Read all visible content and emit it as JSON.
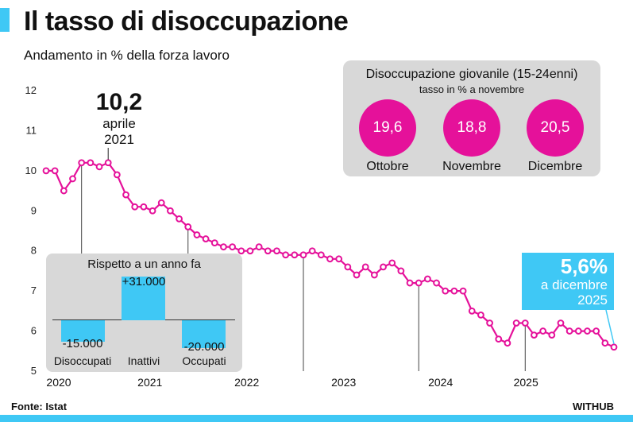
{
  "header": {
    "title": "Il tasso di disoccupazione",
    "subtitle": "Andamento in % della forza lavoro"
  },
  "footer": {
    "source": "Fonte: Istat",
    "brand": "WITHUB"
  },
  "colors": {
    "accent": "#3fc8f5",
    "line": "#e5119a",
    "panel": "#d8d8d8"
  },
  "chart_data": {
    "type": "line",
    "title": "Il tasso di disoccupazione",
    "subtitle": "Andamento in % della forza lavoro",
    "ylabel": "%",
    "xlabel": "",
    "ylim": [
      5,
      12
    ],
    "yticks": [
      "5",
      "6",
      "7",
      "8",
      "9",
      "10",
      "11",
      "12"
    ],
    "xlim": [
      2020.0,
      2025.92
    ],
    "xticks": [
      {
        "label": "2020",
        "value": 2020.0
      },
      {
        "label": "2021",
        "value": 2020.95
      },
      {
        "label": "2022",
        "value": 2021.96
      },
      {
        "label": "2023",
        "value": 2022.97
      },
      {
        "label": "2024",
        "value": 2023.98
      },
      {
        "label": "2025",
        "value": 2024.87
      }
    ],
    "series": [
      {
        "name": "Tasso di disoccupazione",
        "values": [
          10.0,
          10.0,
          9.5,
          9.8,
          10.2,
          10.2,
          10.1,
          10.2,
          9.9,
          9.4,
          9.1,
          9.1,
          9.0,
          9.2,
          9.0,
          8.8,
          8.6,
          8.4,
          8.3,
          8.2,
          8.1,
          8.1,
          8.0,
          8.0,
          8.1,
          8.0,
          8.0,
          7.9,
          7.9,
          7.9,
          8.0,
          7.9,
          7.8,
          7.8,
          7.6,
          7.4,
          7.6,
          7.4,
          7.6,
          7.7,
          7.5,
          7.2,
          7.2,
          7.3,
          7.2,
          7.0,
          7.0,
          7.0,
          6.5,
          6.4,
          6.2,
          5.8,
          5.7,
          6.2,
          6.2,
          5.9,
          6.0,
          5.9,
          6.2,
          6.0,
          6.0,
          6.0,
          6.0,
          5.7,
          5.6
        ]
      }
    ],
    "annotations": [
      {
        "name": "peak",
        "value": "10,2",
        "line1": "aprile",
        "line2": "2021",
        "index": 7
      },
      {
        "name": "last",
        "value": "5,6%",
        "line1": "a dicembre",
        "line2": "2025",
        "index": 64
      }
    ],
    "guide_indices": [
      4,
      16,
      29,
      42,
      54
    ]
  },
  "youth": {
    "title": "Disoccupazione giovanile (15-24enni)",
    "subtitle": "tasso in % a novembre",
    "items": [
      {
        "label": "Ottobre",
        "value": "19,6"
      },
      {
        "label": "Novembre",
        "value": "18,8"
      },
      {
        "label": "Dicembre",
        "value": "20,5"
      }
    ]
  },
  "yoy": {
    "title": "Rispetto a un anno fa",
    "scale_max": 31000,
    "items": [
      {
        "label": "Disoccupati",
        "value": -15000,
        "display": "-15.000"
      },
      {
        "label": "Inattivi",
        "value": 31000,
        "display": "+31.000"
      },
      {
        "label": "Occupati",
        "value": -20000,
        "display": "-20.000"
      }
    ]
  }
}
